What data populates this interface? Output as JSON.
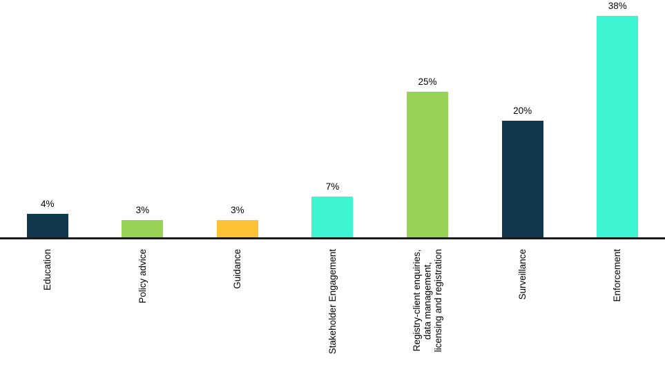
{
  "chart_data": {
    "type": "bar",
    "categories": [
      "Education",
      "Policy advice",
      "Guidance",
      "Stakeholder Engagement",
      "Registry-client enquiries,\ndata management,\nlicensing and registration",
      "Surveillance",
      "Enforcement"
    ],
    "values": [
      4,
      3,
      3,
      7,
      25,
      20,
      38
    ],
    "value_labels": [
      "4%",
      "3%",
      "3%",
      "7%",
      "25%",
      "20%",
      "38%"
    ],
    "bar_colors": [
      "#11374D",
      "#99D355",
      "#FDC235",
      "#3EF5D2",
      "#99D355",
      "#11374D",
      "#3EF5D2"
    ],
    "title": "",
    "xlabel": "",
    "ylabel": "",
    "ylim": [
      0,
      40
    ],
    "grid": false,
    "legend": "none",
    "axis_line_color": "#1A1A1A",
    "text_color": "#000000",
    "background_color": "#FFFFFF"
  }
}
